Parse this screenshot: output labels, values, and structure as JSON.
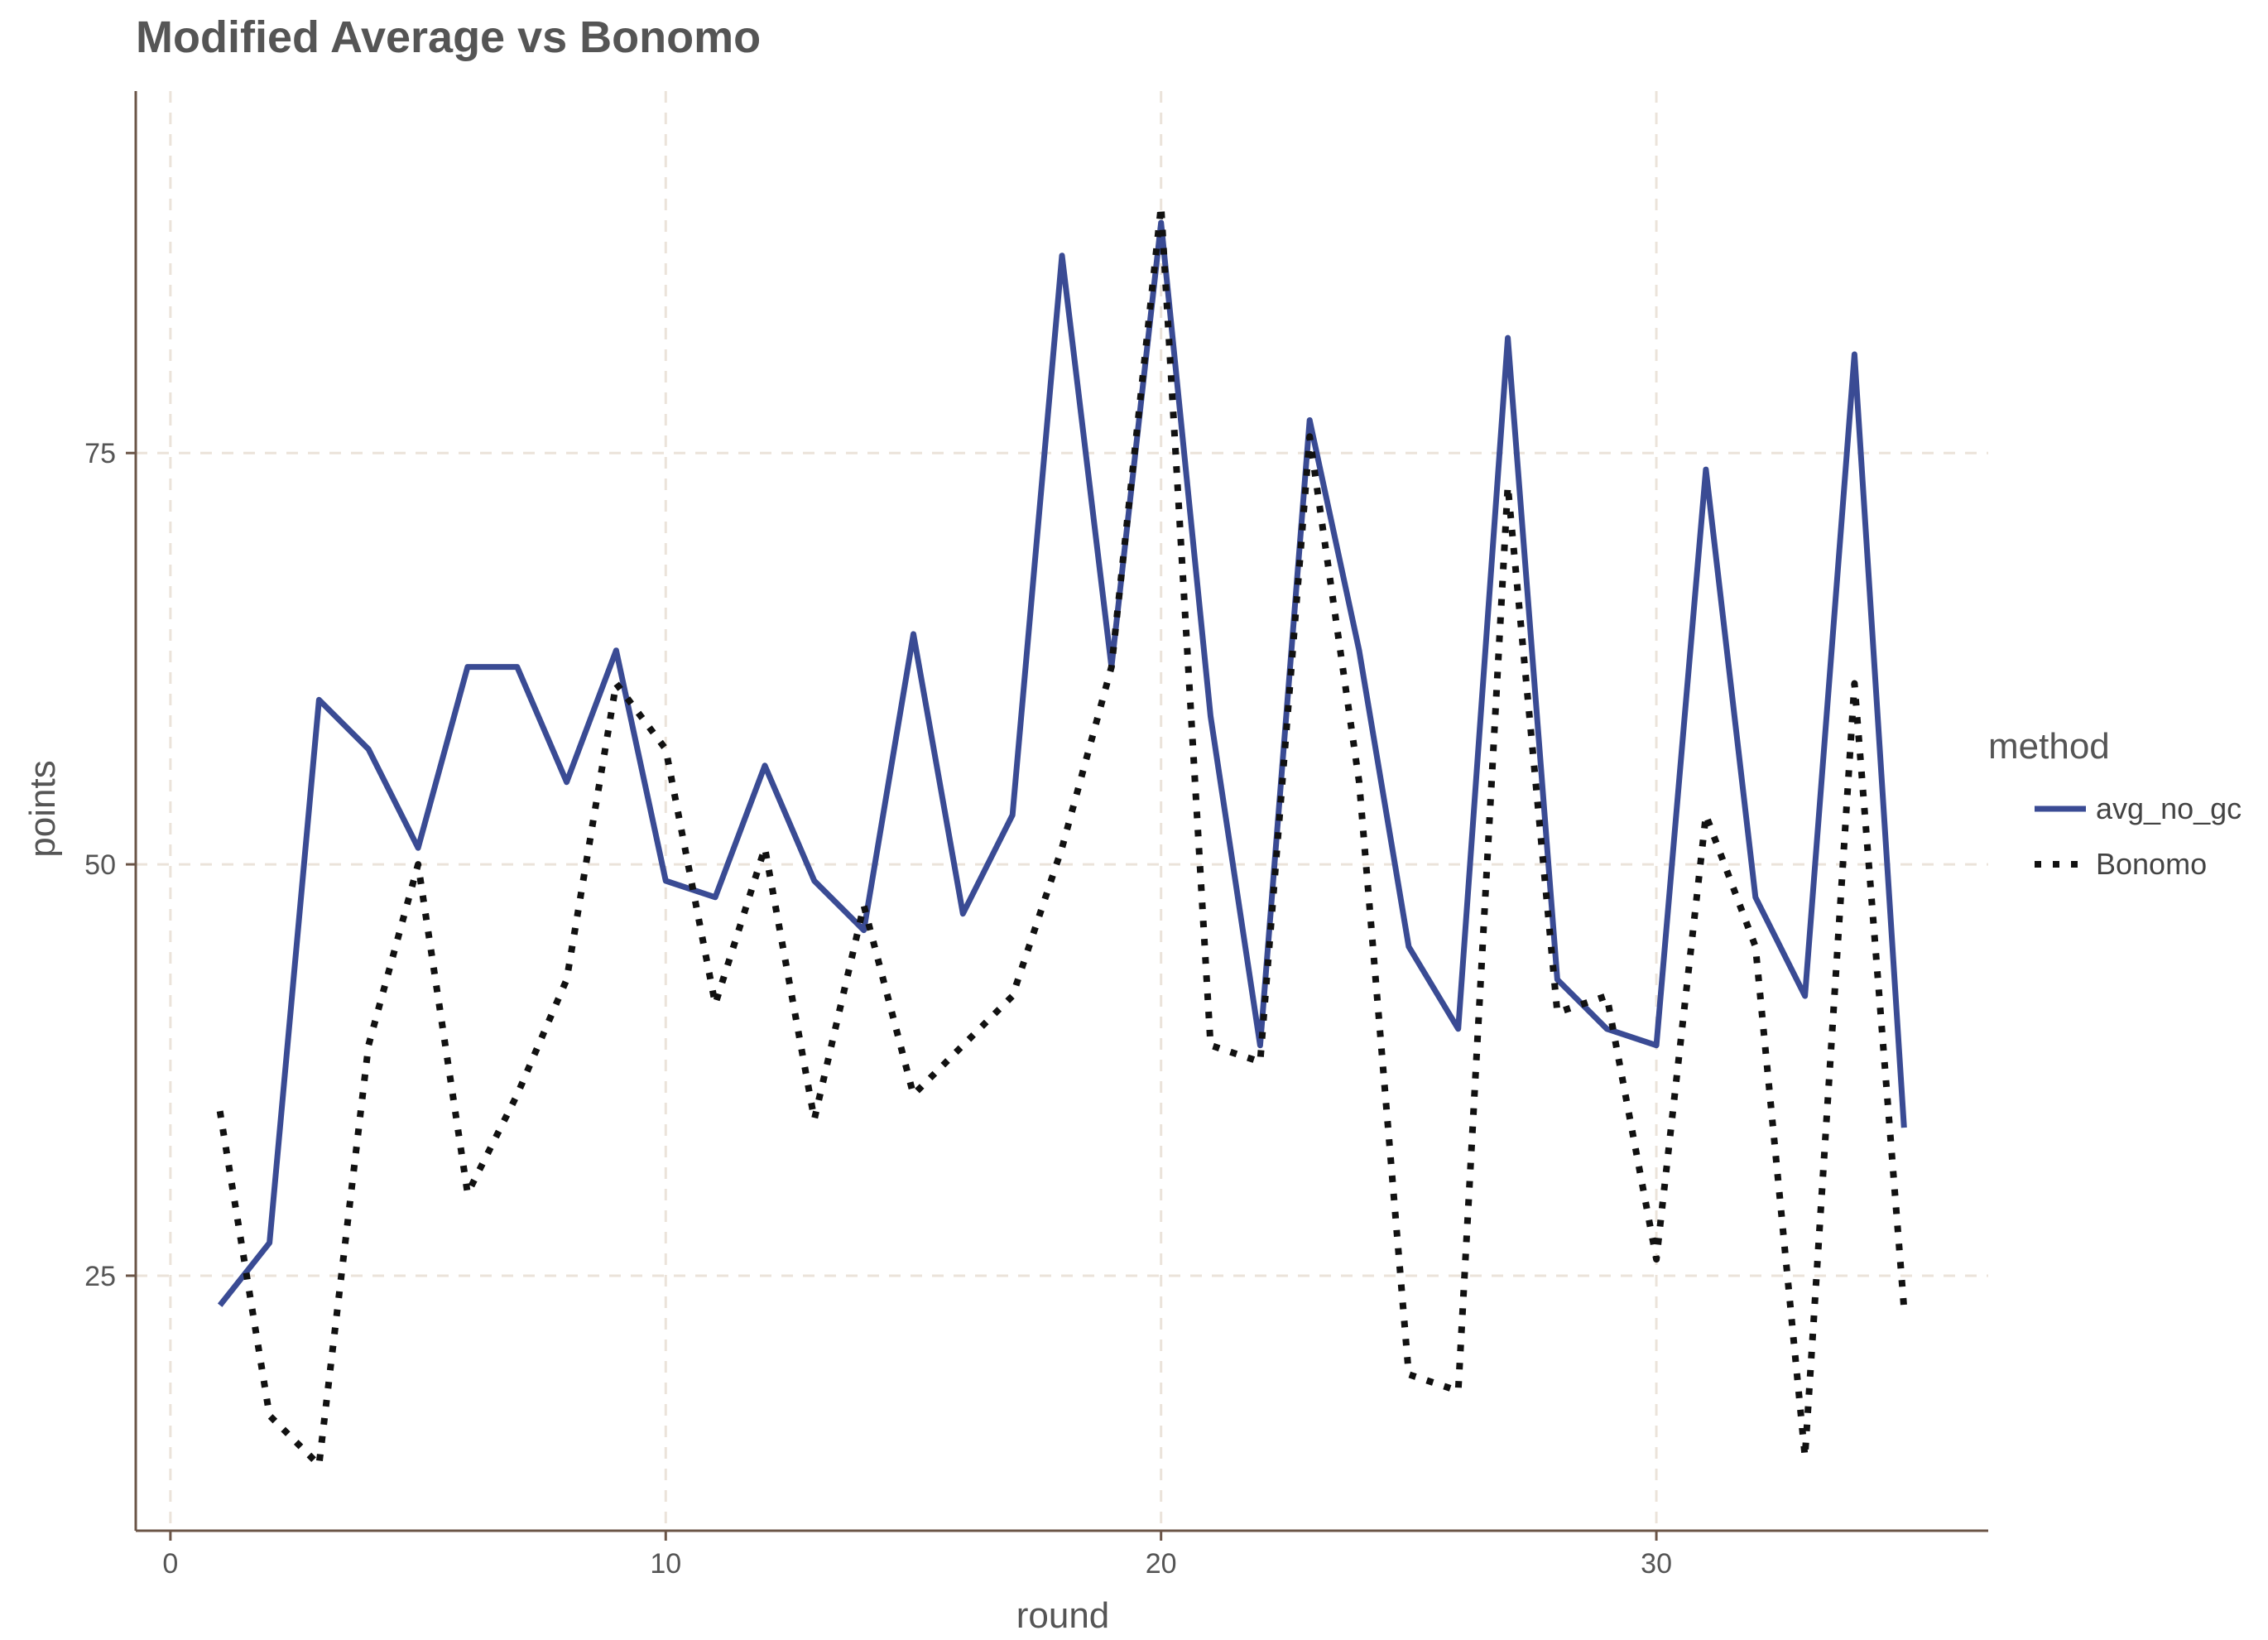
{
  "chart_data": {
    "type": "line",
    "title": "Modified Average vs Bonomo",
    "xlabel": "round",
    "ylabel": "points",
    "xlim": [
      -0.7,
      36.7
    ],
    "ylim": [
      9.5,
      97
    ],
    "x_ticks": [
      0,
      10,
      20,
      30
    ],
    "y_ticks": [
      25,
      50,
      75
    ],
    "grid": true,
    "legend": {
      "title": "method",
      "placement": "right"
    },
    "series": [
      {
        "name": "avg_no_gc",
        "color": "#3a4b94",
        "style": "solid",
        "x": [
          1,
          2,
          3,
          4,
          5,
          6,
          7,
          8,
          9,
          10,
          11,
          12,
          13,
          14,
          15,
          16,
          17,
          18,
          19,
          20,
          21,
          22,
          23,
          24,
          25,
          26,
          27,
          28,
          29,
          30,
          31,
          32,
          33,
          34,
          35
        ],
        "values": [
          23.2,
          27,
          60,
          57,
          51,
          62,
          62,
          55,
          63,
          49,
          48,
          56,
          49,
          46,
          64,
          47,
          53,
          87,
          62,
          89,
          59,
          39,
          77,
          63,
          45,
          40,
          82,
          43,
          40,
          39,
          74,
          48,
          42,
          81,
          34
        ]
      },
      {
        "name": "Bonomo",
        "color": "#111111",
        "style": "dotted",
        "x": [
          1,
          2,
          3,
          4,
          5,
          6,
          7,
          8,
          9,
          10,
          11,
          12,
          13,
          14,
          15,
          16,
          17,
          18,
          19,
          20,
          21,
          22,
          23,
          24,
          25,
          26,
          27,
          28,
          29,
          30,
          31,
          32,
          33,
          34,
          35
        ],
        "values": [
          35,
          16.5,
          13.5,
          39,
          50,
          30,
          36,
          43,
          61,
          57,
          41.5,
          51,
          34.5,
          47.5,
          36,
          39,
          42,
          51,
          62,
          90,
          39,
          38,
          76,
          55,
          19,
          18,
          73,
          41,
          42,
          26,
          53,
          45,
          14,
          61,
          23
        ]
      }
    ],
    "colors": {
      "axis": "#6b5547",
      "grid": "#ebe3da",
      "text": "#555555"
    }
  }
}
